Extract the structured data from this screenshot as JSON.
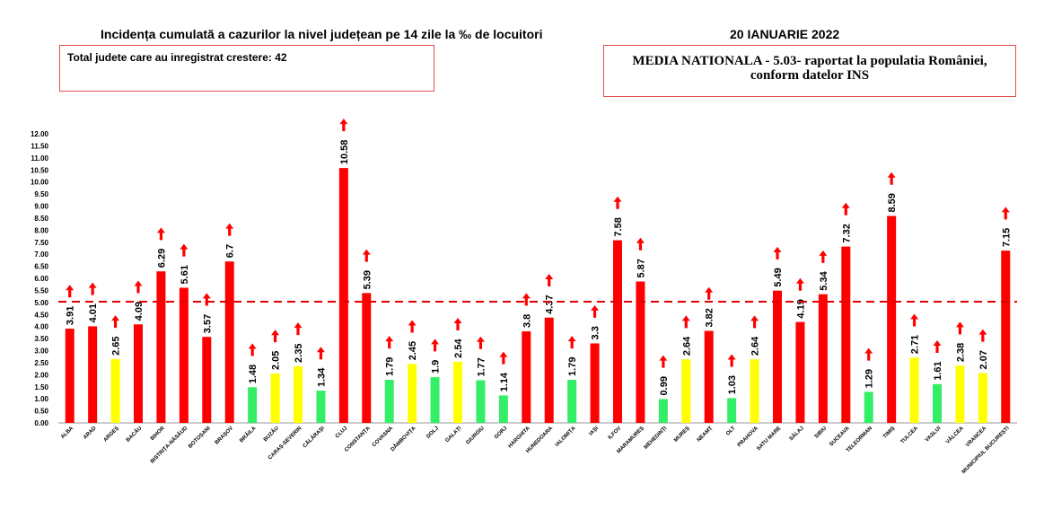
{
  "header": {
    "title": "Incidența cumulată a cazurilor la nivel județean pe 14 zile la ‰ de locuitori",
    "date": "20 IANUARIE 2022",
    "total_box": "Total judete care au inregistrat crestere: 42",
    "national_line1": "MEDIA NATIONALA - 5.03-  raportat la populatia României,",
    "national_line2": "conform datelor INS"
  },
  "colors": {
    "red": "#ff0000",
    "yellow": "#ffff00",
    "green": "#33ee66",
    "arrow": "#ff0000",
    "reference_line": "#e00000"
  },
  "chart_data": {
    "type": "bar",
    "title": "Incidența cumulată a cazurilor la nivel județean pe 14 zile la ‰ de locuitori",
    "xlabel": "",
    "ylabel": "",
    "ylim": [
      0,
      12
    ],
    "y_ticks": [
      "0.00",
      "0.50",
      "1.00",
      "1.50",
      "2.00",
      "2.50",
      "3.00",
      "3.50",
      "4.00",
      "4.50",
      "5.00",
      "5.50",
      "6.00",
      "6.50",
      "7.00",
      "7.50",
      "8.00",
      "8.50",
      "9.00",
      "9.50",
      "10.00",
      "10.50",
      "11.00",
      "11.50",
      "12.00"
    ],
    "reference_line": {
      "value": 5.03,
      "style": "dashed"
    },
    "grid": false,
    "categories": [
      "ALBA",
      "ARAD",
      "ARGEȘ",
      "BACĂU",
      "BIHOR",
      "BISTRIȚA-NĂSĂUD",
      "BOTOȘANI",
      "BRAȘOV",
      "BRĂILA",
      "BUZĂU",
      "CARAȘ-SEVERIN",
      "CĂLĂRAȘI",
      "CLUJ",
      "CONSTANȚA",
      "COVASNA",
      "DÂMBOVIȚA",
      "DOLJ",
      "GALAȚI",
      "GIURGIU",
      "GORJ",
      "HARGHITA",
      "HUNEDOARA",
      "IALOMIȚA",
      "IAȘI",
      "ILFOV",
      "MARAMUREȘ",
      "MEHEDINȚI",
      "MUREȘ",
      "NEAMȚ",
      "OLT",
      "PRAHOVA",
      "SATU MARE",
      "SĂLAJ",
      "SIBIU",
      "SUCEAVA",
      "TELEORMAN",
      "TIMIȘ",
      "TULCEA",
      "VASLUI",
      "VÂLCEA",
      "VRANCEA",
      "MUNICIPIUL BUCUREȘTI"
    ],
    "values": [
      3.91,
      4.01,
      2.65,
      4.09,
      6.29,
      5.61,
      3.57,
      6.7,
      1.48,
      2.05,
      2.35,
      1.34,
      10.58,
      5.39,
      1.79,
      2.45,
      1.9,
      2.54,
      1.77,
      1.14,
      3.8,
      4.37,
      1.79,
      3.3,
      7.58,
      5.87,
      0.99,
      2.64,
      3.82,
      1.03,
      2.64,
      5.49,
      4.19,
      5.34,
      7.32,
      1.29,
      8.59,
      2.71,
      1.61,
      2.38,
      2.07,
      7.15
    ],
    "labels": [
      "3.91",
      "4.01",
      "2.65",
      "4.09",
      "6.29",
      "5.61",
      "3.57",
      "6.7",
      "1.48",
      "2.05",
      "2.35",
      "1.34",
      "10.58",
      "5.39",
      "1.79",
      "2.45",
      "1.9",
      "2.54",
      "1.77",
      "1.14",
      "3.8",
      "4.37",
      "1.79",
      "3.3",
      "7.58",
      "5.87",
      "0.99",
      "2.64",
      "3.82",
      "1.03",
      "2.64",
      "5.49",
      "4.19",
      "5.34",
      "7.32",
      "1.29",
      "8.59",
      "2.71",
      "1.61",
      "2.38",
      "2.07",
      "7.15"
    ],
    "bar_colors": [
      "red",
      "red",
      "yellow",
      "red",
      "red",
      "red",
      "red",
      "red",
      "green",
      "yellow",
      "yellow",
      "green",
      "red",
      "red",
      "green",
      "yellow",
      "green",
      "yellow",
      "green",
      "green",
      "red",
      "red",
      "green",
      "red",
      "red",
      "red",
      "green",
      "yellow",
      "red",
      "green",
      "yellow",
      "red",
      "red",
      "red",
      "red",
      "green",
      "red",
      "yellow",
      "green",
      "yellow",
      "yellow",
      "red"
    ],
    "trend": "up"
  }
}
